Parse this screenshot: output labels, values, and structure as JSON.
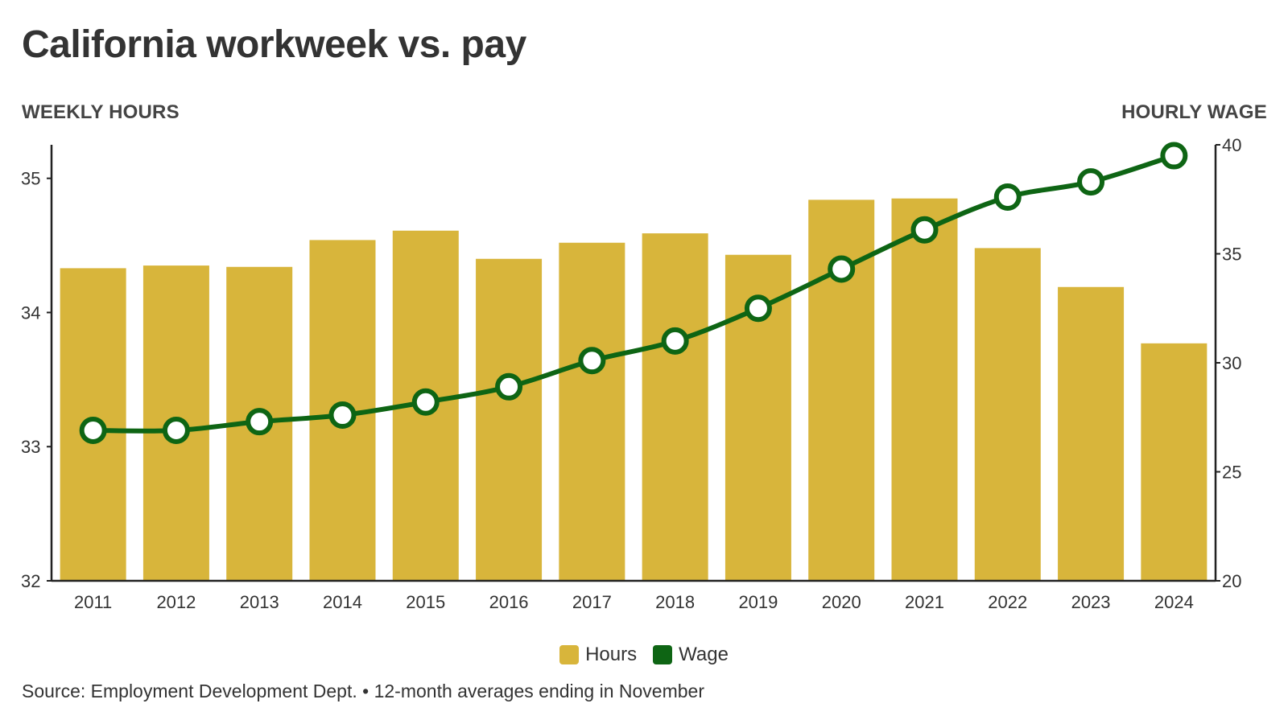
{
  "title": "California workweek vs. pay",
  "axis_titles": {
    "left": "WEEKLY HOURS",
    "right": "HOURLY WAGE"
  },
  "source": "Source: Employment Development Dept. • 12-month averages ending in November",
  "colors": {
    "hours": "#D8B53B",
    "wage": "#0E6514",
    "axis": "#222222",
    "text": "#333333"
  },
  "chart_data": {
    "type": "bar",
    "categories": [
      "2011",
      "2012",
      "2013",
      "2014",
      "2015",
      "2016",
      "2017",
      "2018",
      "2019",
      "2020",
      "2021",
      "2022",
      "2023",
      "2024"
    ],
    "series": [
      {
        "name": "Hours",
        "type": "bar",
        "axis": "left",
        "values": [
          34.33,
          34.35,
          34.34,
          34.54,
          34.61,
          34.4,
          34.52,
          34.59,
          34.43,
          34.84,
          34.85,
          34.48,
          34.19,
          33.77
        ]
      },
      {
        "name": "Wage",
        "type": "line",
        "axis": "right",
        "values": [
          26.9,
          26.9,
          27.3,
          27.6,
          28.2,
          28.9,
          30.1,
          31.0,
          32.5,
          34.3,
          36.1,
          37.6,
          38.3,
          39.5
        ]
      }
    ],
    "y_left": {
      "lim": [
        32,
        35.25
      ],
      "ticks": [
        32,
        33,
        34,
        35
      ]
    },
    "y_right": {
      "lim": [
        20,
        40
      ],
      "ticks": [
        20,
        25,
        30,
        35,
        40
      ]
    },
    "legend": [
      "Hours",
      "Wage"
    ],
    "legend_position": "bottom-center",
    "grid": false
  }
}
